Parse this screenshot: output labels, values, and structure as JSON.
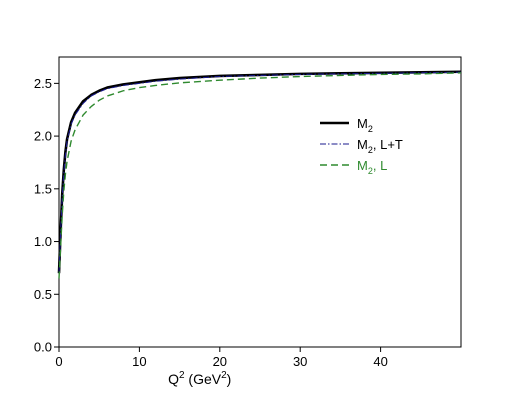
{
  "chart_data": {
    "type": "line",
    "xlabel": "Q2 (GeV2)",
    "xlabel_base": "Q",
    "xlabel_sup": "2",
    "xlabel_mid": " (GeV",
    "xlabel_sup2": "2",
    "xlabel_end": ")",
    "ylabel": "",
    "xlim": [
      0,
      50
    ],
    "ylim": [
      0.0,
      2.75
    ],
    "xticks": [
      0,
      10,
      20,
      30,
      40
    ],
    "xtick_labels": [
      "0",
      "10",
      "20",
      "30",
      "40"
    ],
    "yticks": [
      0.0,
      0.5,
      1.0,
      1.5,
      2.0,
      2.5
    ],
    "ytick_labels": [
      "0.0",
      "0.5",
      "1.0",
      "1.5",
      "2.0",
      "2.5"
    ],
    "grid": false,
    "legend_position": "upper-right",
    "series": [
      {
        "name": "M2",
        "label_base": "M",
        "label_sub": "2",
        "label_suffix": "",
        "color": "#000000",
        "style": "solid-thick",
        "x": [
          0,
          0.2,
          0.4,
          0.6,
          0.8,
          1.0,
          1.5,
          2,
          3,
          4,
          5,
          6,
          8,
          10,
          12,
          15,
          20,
          25,
          30,
          35,
          40,
          45,
          50
        ],
        "y": [
          0.7,
          1.1,
          1.45,
          1.68,
          1.85,
          1.97,
          2.13,
          2.22,
          2.33,
          2.39,
          2.43,
          2.46,
          2.49,
          2.51,
          2.53,
          2.55,
          2.57,
          2.58,
          2.59,
          2.595,
          2.6,
          2.605,
          2.61
        ]
      },
      {
        "name": "M2, L+T",
        "label_base": "M",
        "label_sub": "2",
        "label_suffix": ", L+T",
        "color": "#1a1a8c",
        "style": "dashdot",
        "x": [
          0,
          0.2,
          0.4,
          0.6,
          0.8,
          1.0,
          1.5,
          2,
          3,
          4,
          5,
          6,
          8,
          10,
          12,
          15,
          20,
          25,
          30,
          35,
          40,
          45,
          50
        ],
        "y": [
          0.7,
          1.08,
          1.42,
          1.65,
          1.82,
          1.95,
          2.11,
          2.2,
          2.31,
          2.38,
          2.42,
          2.45,
          2.48,
          2.5,
          2.52,
          2.54,
          2.565,
          2.575,
          2.585,
          2.59,
          2.595,
          2.6,
          2.605
        ]
      },
      {
        "name": "M2, L",
        "label_base": "M",
        "label_sub": "2",
        "label_suffix": ", L",
        "color": "#2f8a2f",
        "style": "dashed",
        "x": [
          0,
          0.2,
          0.4,
          0.6,
          0.8,
          1.0,
          1.5,
          2,
          3,
          4,
          5,
          6,
          8,
          10,
          12,
          15,
          20,
          25,
          30,
          35,
          40,
          45,
          50
        ],
        "y": [
          0.65,
          0.95,
          1.25,
          1.48,
          1.64,
          1.76,
          1.95,
          2.06,
          2.2,
          2.28,
          2.34,
          2.38,
          2.43,
          2.46,
          2.48,
          2.505,
          2.53,
          2.55,
          2.565,
          2.575,
          2.585,
          2.59,
          2.6
        ]
      }
    ]
  }
}
